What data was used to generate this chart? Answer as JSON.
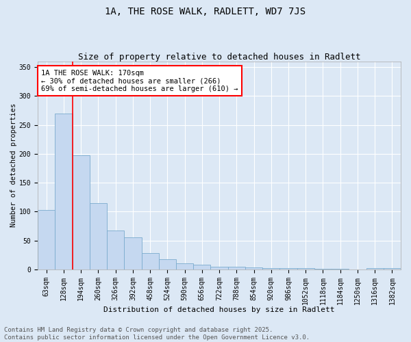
{
  "title": "1A, THE ROSE WALK, RADLETT, WD7 7JS",
  "subtitle": "Size of property relative to detached houses in Radlett",
  "xlabel": "Distribution of detached houses by size in Radlett",
  "ylabel": "Number of detached properties",
  "categories": [
    "63sqm",
    "128sqm",
    "194sqm",
    "260sqm",
    "326sqm",
    "392sqm",
    "458sqm",
    "524sqm",
    "590sqm",
    "656sqm",
    "722sqm",
    "788sqm",
    "854sqm",
    "920sqm",
    "986sqm",
    "1052sqm",
    "1118sqm",
    "1184sqm",
    "1250sqm",
    "1316sqm",
    "1382sqm"
  ],
  "values": [
    103,
    270,
    197,
    115,
    67,
    55,
    28,
    18,
    10,
    8,
    5,
    5,
    3,
    2,
    2,
    2,
    1,
    1,
    0,
    2,
    2
  ],
  "bar_color": "#c5d8f0",
  "bar_edge_color": "#7aabce",
  "vline_x": 1.5,
  "vline_color": "red",
  "annotation_box_text": "1A THE ROSE WALK: 170sqm\n← 30% of detached houses are smaller (266)\n69% of semi-detached houses are larger (610) →",
  "ylim": [
    0,
    360
  ],
  "yticks": [
    0,
    50,
    100,
    150,
    200,
    250,
    300,
    350
  ],
  "bg_color": "#dce8f5",
  "plot_bg_color": "#dce8f5",
  "footer_line1": "Contains HM Land Registry data © Crown copyright and database right 2025.",
  "footer_line2": "Contains public sector information licensed under the Open Government Licence v3.0.",
  "title_fontsize": 10,
  "subtitle_fontsize": 9,
  "xlabel_fontsize": 8,
  "ylabel_fontsize": 7.5,
  "tick_fontsize": 7,
  "annotation_fontsize": 7.5,
  "footer_fontsize": 6.5
}
